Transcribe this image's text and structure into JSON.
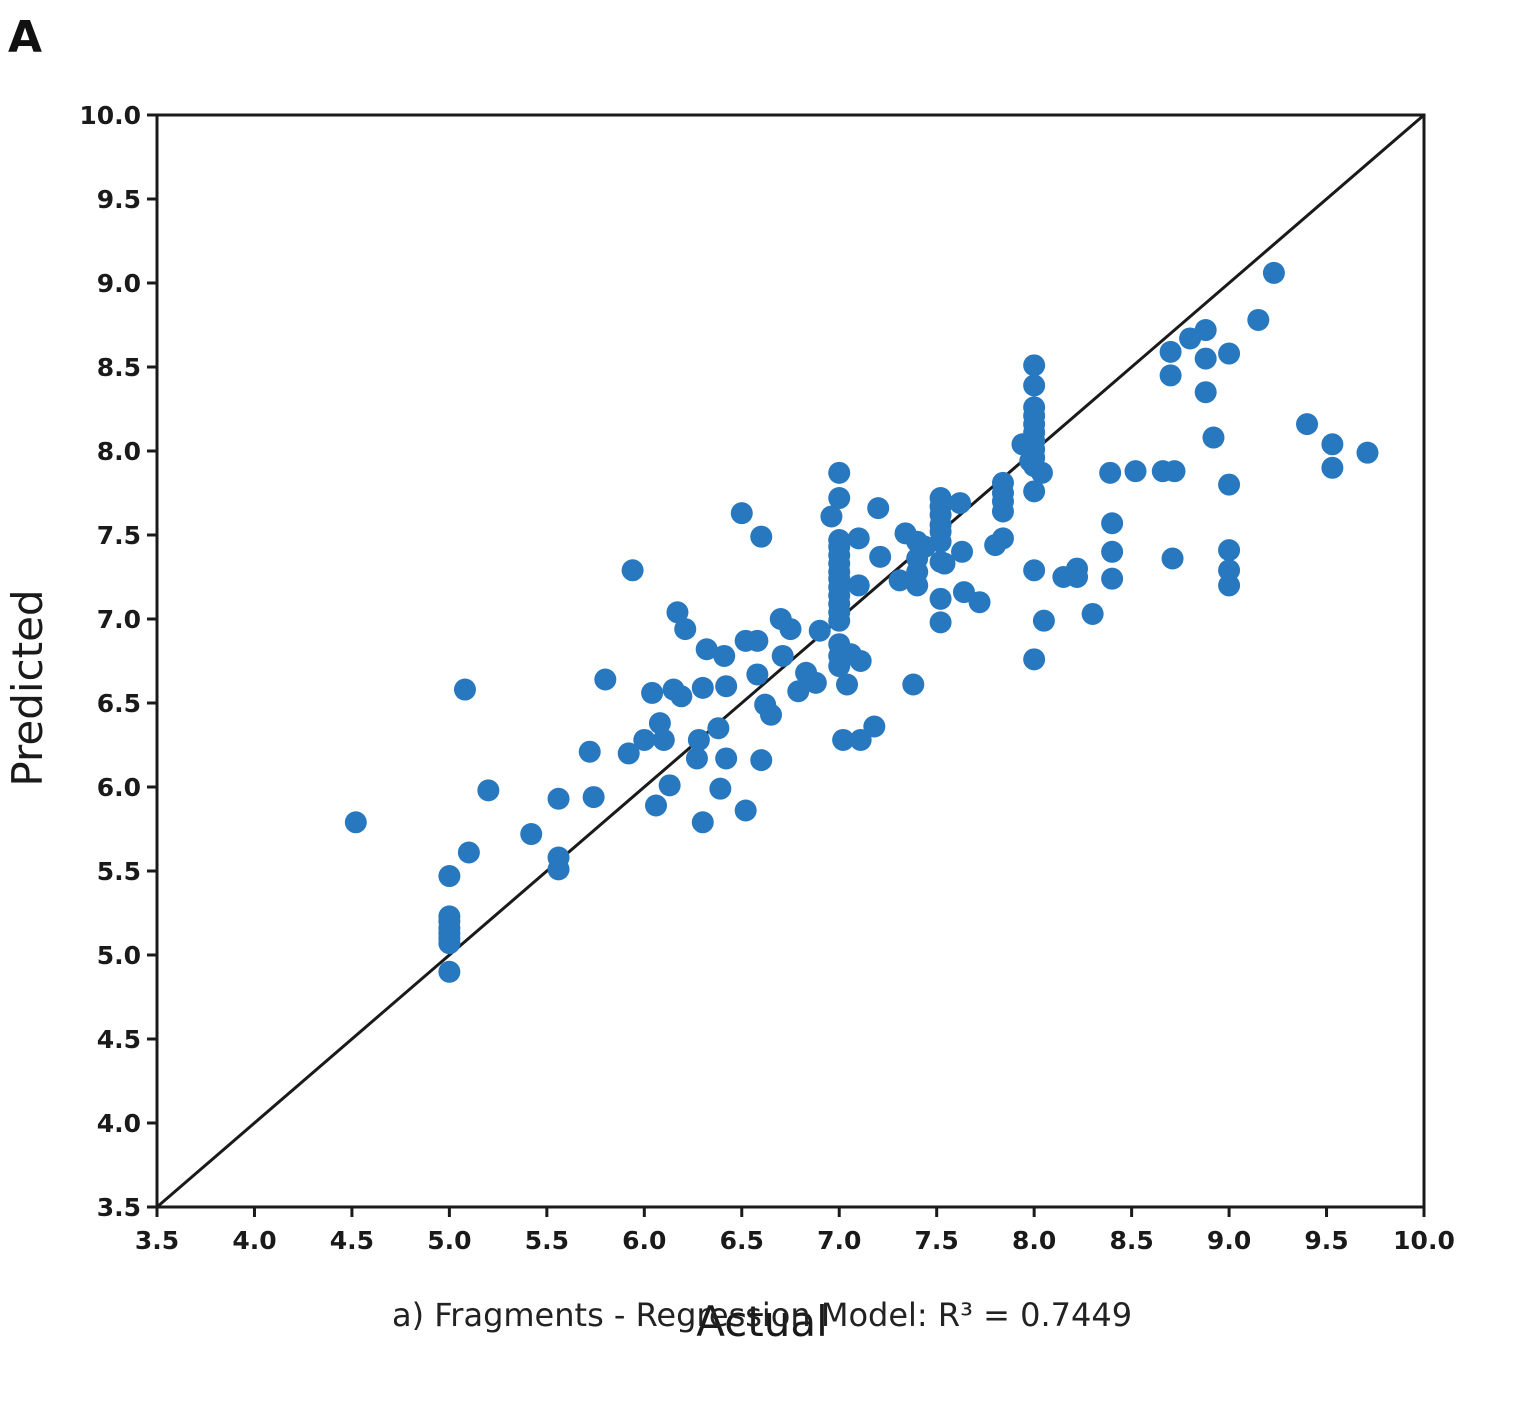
{
  "panel_label": "A",
  "caption": "a) Fragments - Regression Model: R³ = 0.7449",
  "chart_data": {
    "type": "scatter",
    "xlabel": "Actual",
    "ylabel": "Predicted",
    "xlim": [
      3.5,
      10.0
    ],
    "ylim": [
      3.5,
      10.0
    ],
    "xticks": [
      "3.5",
      "4.0",
      "4.5",
      "5.0",
      "5.5",
      "6.0",
      "6.5",
      "7.0",
      "7.5",
      "8.0",
      "8.5",
      "9.0",
      "9.5",
      "10.0"
    ],
    "yticks": [
      "3.5",
      "4.0",
      "4.5",
      "5.0",
      "5.5",
      "6.0",
      "6.5",
      "7.0",
      "7.5",
      "8.0",
      "8.5",
      "9.0",
      "9.5",
      "10.0"
    ],
    "point_color": "#2878c0",
    "reference_line": {
      "from": [
        3.5,
        3.5
      ],
      "to": [
        10.0,
        10.0
      ],
      "color": "#1a1a1a"
    },
    "grid": false,
    "points": [
      [
        4.52,
        5.79
      ],
      [
        5.0,
        5.47
      ],
      [
        5.0,
        5.23
      ],
      [
        5.0,
        5.2
      ],
      [
        5.0,
        5.16
      ],
      [
        5.0,
        5.13
      ],
      [
        5.0,
        5.1
      ],
      [
        5.0,
        5.07
      ],
      [
        5.0,
        4.9
      ],
      [
        5.08,
        6.58
      ],
      [
        5.1,
        5.61
      ],
      [
        5.2,
        5.98
      ],
      [
        5.42,
        5.72
      ],
      [
        5.56,
        5.58
      ],
      [
        5.56,
        5.51
      ],
      [
        5.56,
        5.93
      ],
      [
        5.72,
        6.21
      ],
      [
        5.74,
        5.94
      ],
      [
        5.8,
        6.64
      ],
      [
        5.92,
        6.2
      ],
      [
        5.94,
        7.29
      ],
      [
        6.0,
        6.28
      ],
      [
        6.04,
        6.56
      ],
      [
        6.06,
        5.89
      ],
      [
        6.08,
        6.38
      ],
      [
        6.1,
        6.28
      ],
      [
        6.13,
        6.01
      ],
      [
        6.15,
        6.58
      ],
      [
        6.17,
        7.04
      ],
      [
        6.19,
        6.54
      ],
      [
        6.21,
        6.94
      ],
      [
        6.27,
        6.17
      ],
      [
        6.28,
        6.28
      ],
      [
        6.3,
        6.59
      ],
      [
        6.3,
        5.79
      ],
      [
        6.32,
        6.82
      ],
      [
        6.38,
        6.35
      ],
      [
        6.39,
        5.99
      ],
      [
        6.41,
        6.78
      ],
      [
        6.42,
        6.6
      ],
      [
        6.42,
        6.17
      ],
      [
        6.5,
        7.63
      ],
      [
        6.52,
        6.87
      ],
      [
        6.52,
        5.86
      ],
      [
        6.58,
        6.67
      ],
      [
        6.58,
        6.87
      ],
      [
        6.6,
        6.16
      ],
      [
        6.6,
        7.49
      ],
      [
        6.62,
        6.49
      ],
      [
        6.65,
        6.43
      ],
      [
        6.7,
        7.0
      ],
      [
        6.71,
        6.78
      ],
      [
        6.75,
        6.94
      ],
      [
        6.79,
        6.57
      ],
      [
        6.83,
        6.68
      ],
      [
        6.88,
        6.62
      ],
      [
        6.9,
        6.93
      ],
      [
        6.96,
        7.61
      ],
      [
        7.0,
        7.87
      ],
      [
        7.0,
        7.72
      ],
      [
        7.0,
        7.47
      ],
      [
        7.0,
        7.43
      ],
      [
        7.0,
        7.38
      ],
      [
        7.0,
        7.33
      ],
      [
        7.0,
        7.28
      ],
      [
        7.0,
        7.24
      ],
      [
        7.0,
        7.19
      ],
      [
        7.0,
        7.14
      ],
      [
        7.0,
        7.09
      ],
      [
        7.0,
        7.04
      ],
      [
        7.0,
        6.99
      ],
      [
        7.0,
        6.85
      ],
      [
        7.0,
        6.78
      ],
      [
        7.0,
        6.72
      ],
      [
        7.02,
        6.28
      ],
      [
        7.04,
        6.61
      ],
      [
        7.06,
        6.79
      ],
      [
        7.1,
        7.2
      ],
      [
        7.1,
        7.48
      ],
      [
        7.11,
        6.75
      ],
      [
        7.11,
        6.28
      ],
      [
        7.18,
        6.36
      ],
      [
        7.2,
        7.66
      ],
      [
        7.21,
        7.37
      ],
      [
        7.31,
        7.23
      ],
      [
        7.34,
        7.51
      ],
      [
        7.38,
        6.61
      ],
      [
        7.4,
        7.46
      ],
      [
        7.4,
        7.36
      ],
      [
        7.4,
        7.28
      ],
      [
        7.4,
        7.2
      ],
      [
        7.44,
        7.43
      ],
      [
        7.52,
        7.72
      ],
      [
        7.52,
        7.67
      ],
      [
        7.52,
        7.62
      ],
      [
        7.52,
        7.56
      ],
      [
        7.52,
        7.52
      ],
      [
        7.52,
        7.46
      ],
      [
        7.52,
        7.34
      ],
      [
        7.52,
        7.12
      ],
      [
        7.52,
        6.98
      ],
      [
        7.54,
        7.33
      ],
      [
        7.62,
        7.69
      ],
      [
        7.63,
        7.4
      ],
      [
        7.64,
        7.16
      ],
      [
        7.72,
        7.1
      ],
      [
        7.8,
        7.44
      ],
      [
        7.84,
        7.81
      ],
      [
        7.84,
        7.75
      ],
      [
        7.84,
        7.7
      ],
      [
        7.84,
        7.64
      ],
      [
        7.84,
        7.48
      ],
      [
        7.94,
        8.04
      ],
      [
        7.98,
        7.94
      ],
      [
        8.0,
        8.51
      ],
      [
        8.0,
        8.39
      ],
      [
        8.0,
        8.26
      ],
      [
        8.0,
        8.21
      ],
      [
        8.0,
        8.16
      ],
      [
        8.0,
        8.11
      ],
      [
        8.0,
        8.06
      ],
      [
        8.0,
        8.01
      ],
      [
        8.0,
        7.96
      ],
      [
        8.0,
        7.91
      ],
      [
        8.0,
        7.76
      ],
      [
        8.0,
        7.29
      ],
      [
        8.0,
        6.76
      ],
      [
        8.04,
        7.87
      ],
      [
        8.05,
        6.99
      ],
      [
        8.15,
        7.25
      ],
      [
        8.22,
        7.3
      ],
      [
        8.22,
        7.25
      ],
      [
        8.3,
        7.03
      ],
      [
        8.39,
        7.87
      ],
      [
        8.4,
        7.57
      ],
      [
        8.4,
        7.4
      ],
      [
        8.4,
        7.24
      ],
      [
        8.52,
        7.88
      ],
      [
        8.66,
        7.88
      ],
      [
        8.7,
        8.59
      ],
      [
        8.7,
        8.45
      ],
      [
        8.71,
        7.36
      ],
      [
        8.72,
        7.88
      ],
      [
        8.8,
        8.67
      ],
      [
        8.88,
        8.72
      ],
      [
        8.88,
        8.55
      ],
      [
        8.88,
        8.35
      ],
      [
        8.92,
        8.08
      ],
      [
        9.0,
        8.58
      ],
      [
        9.0,
        7.8
      ],
      [
        9.0,
        7.41
      ],
      [
        9.0,
        7.29
      ],
      [
        9.0,
        7.2
      ],
      [
        9.15,
        8.78
      ],
      [
        9.23,
        9.06
      ],
      [
        9.4,
        8.16
      ],
      [
        9.53,
        8.04
      ],
      [
        9.53,
        7.9
      ],
      [
        9.71,
        7.99
      ]
    ]
  }
}
